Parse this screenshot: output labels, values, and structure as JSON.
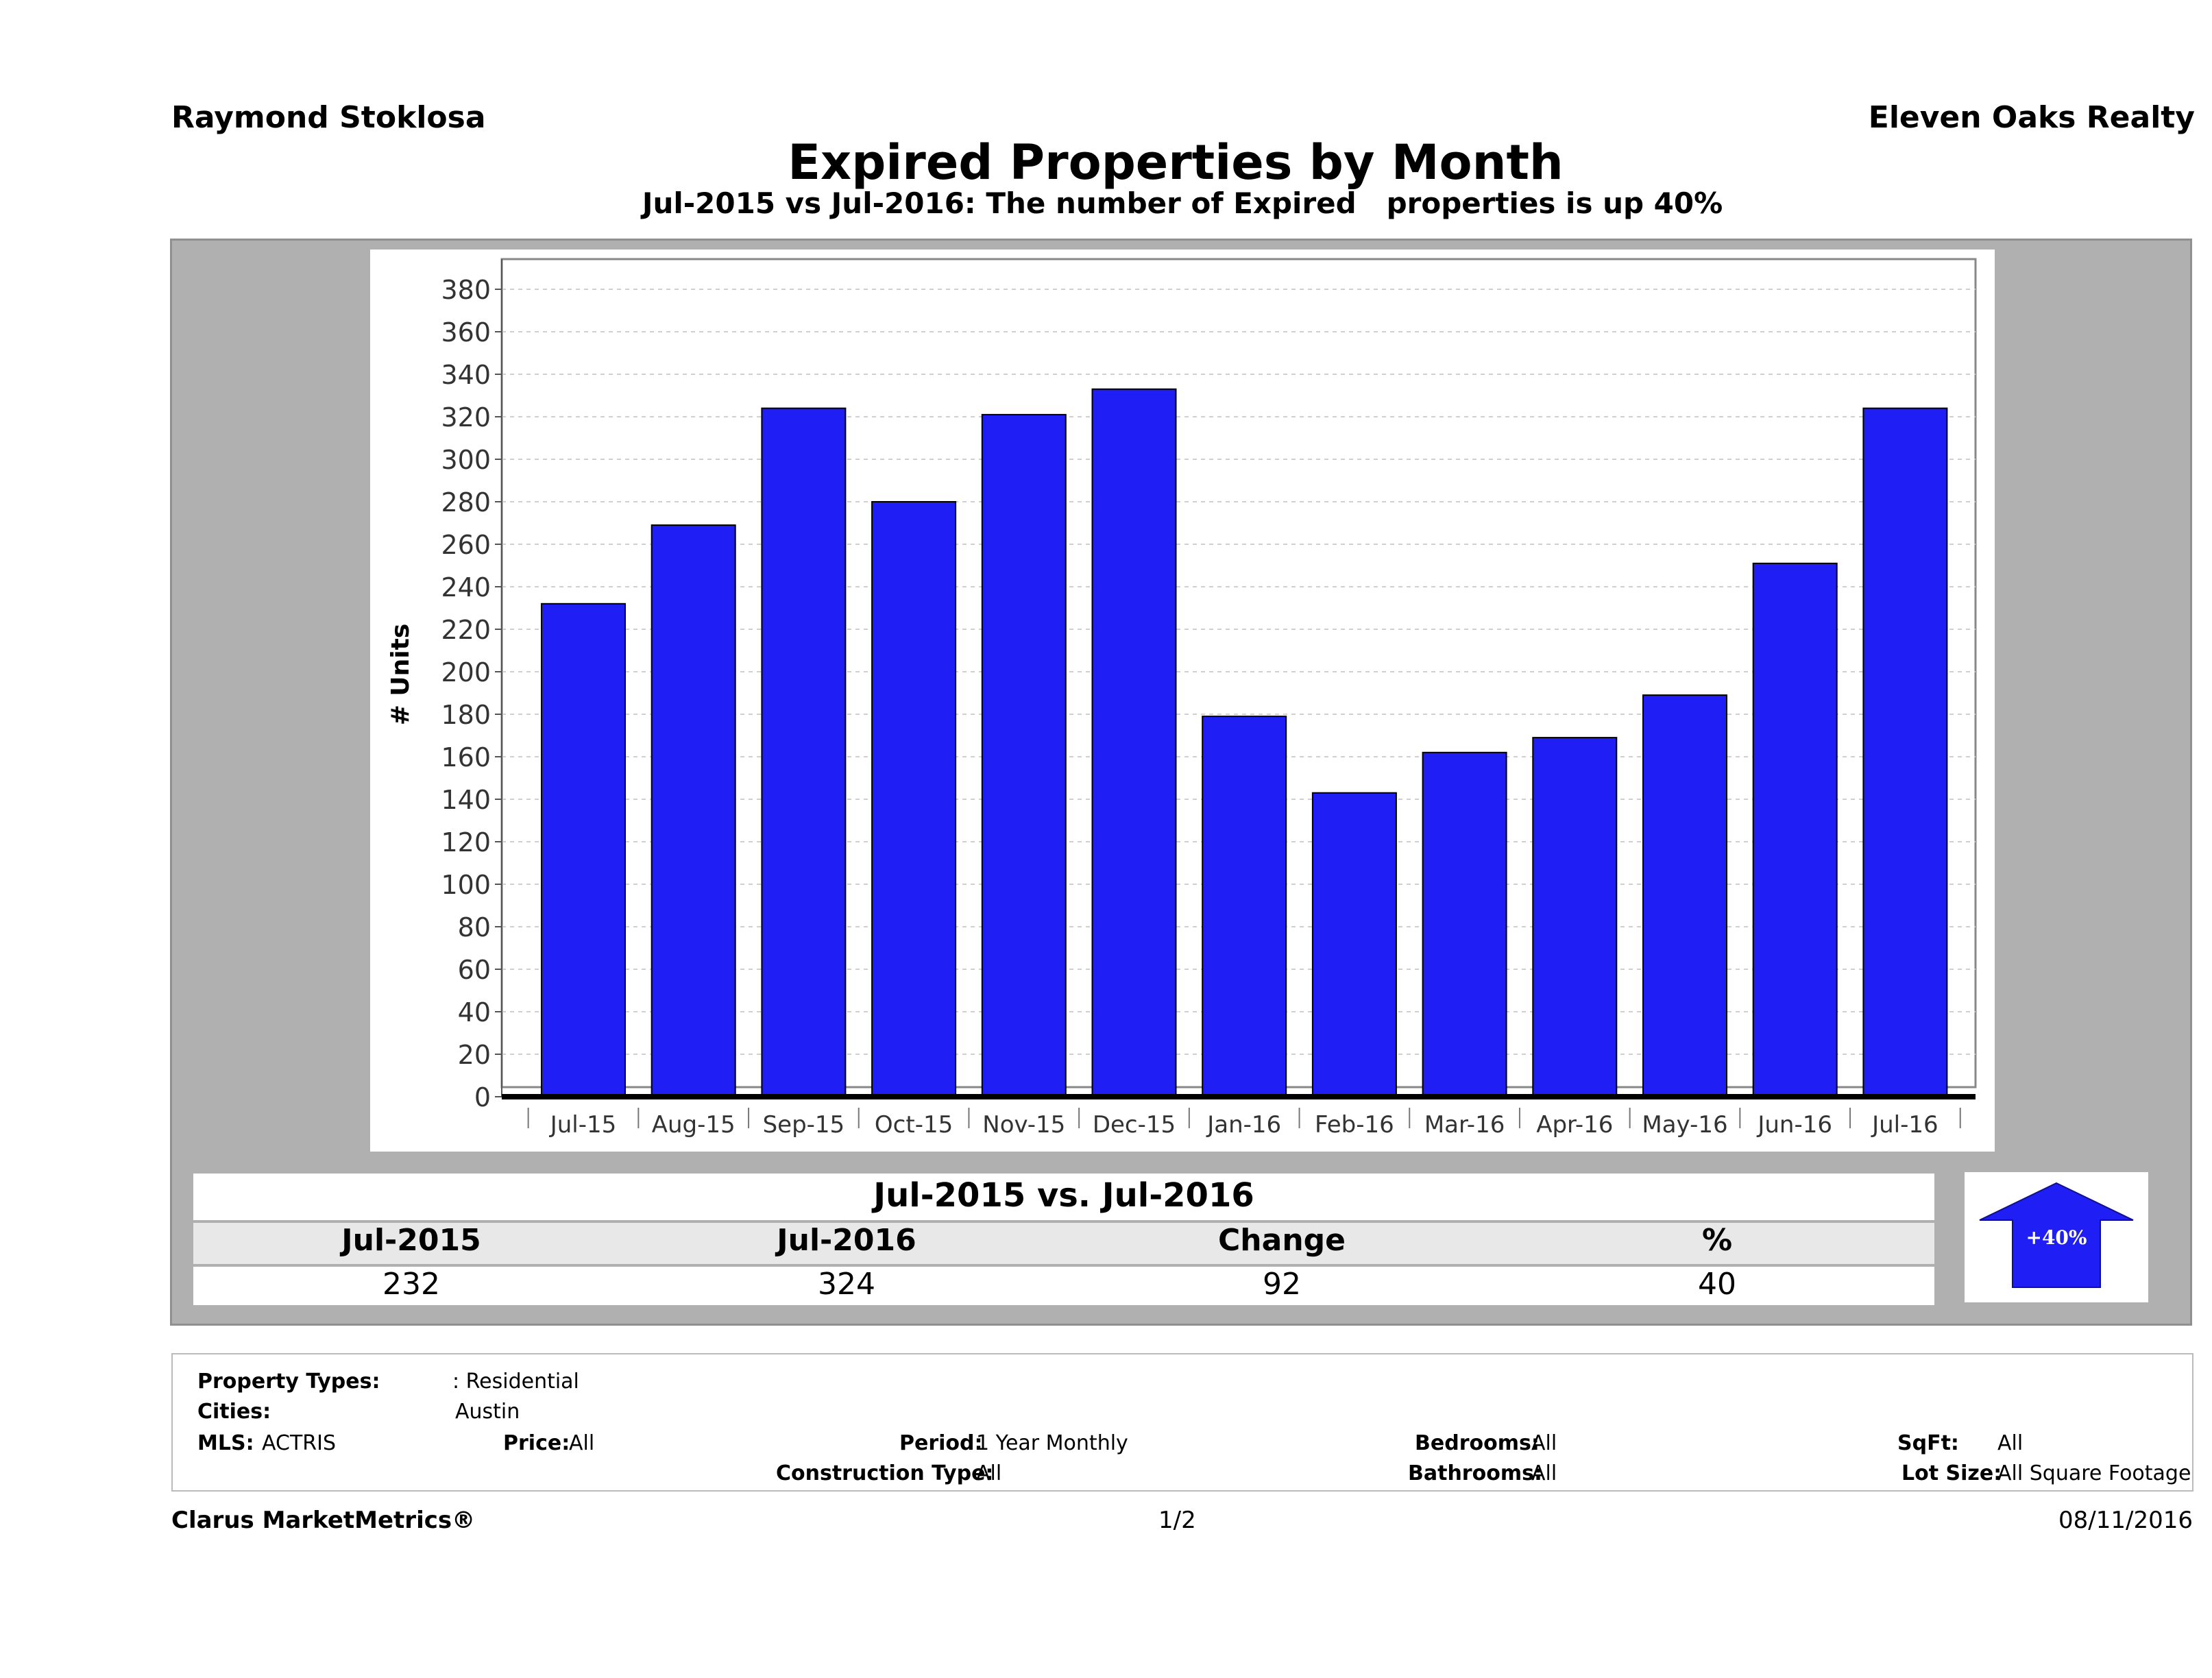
{
  "header": {
    "agent": "Raymond Stoklosa",
    "company": "Eleven Oaks Realty",
    "title": "Expired Properties by Month",
    "subtitle": "Jul-2015 vs Jul-2016: The number of Expired   properties is up 40%"
  },
  "chart_data": {
    "type": "bar",
    "categories": [
      "Jul-15",
      "Aug-15",
      "Sep-15",
      "Oct-15",
      "Nov-15",
      "Dec-15",
      "Jan-16",
      "Feb-16",
      "Mar-16",
      "Apr-16",
      "May-16",
      "Jun-16",
      "Jul-16"
    ],
    "values": [
      232,
      269,
      324,
      280,
      321,
      333,
      179,
      143,
      162,
      169,
      189,
      251,
      324
    ],
    "ylabel": "# Units",
    "xlabel": "",
    "ylim": [
      0,
      380
    ],
    "yticks": [
      0,
      20,
      40,
      60,
      80,
      100,
      120,
      140,
      160,
      180,
      200,
      220,
      240,
      260,
      280,
      300,
      320,
      340,
      360,
      380
    ],
    "grid": true,
    "bar_color": "#1f1ff5"
  },
  "summary": {
    "title": "Jul-2015 vs. Jul-2016",
    "headers": [
      "Jul-2015",
      "Jul-2016",
      "Change",
      "%"
    ],
    "values": [
      "232",
      "324",
      "92",
      "40"
    ],
    "arrow_label": "+40%",
    "arrow_direction": "up",
    "arrow_color": "#1f1ff5"
  },
  "filters": {
    "property_types_label": "Property Types:",
    "property_types_value": ": Residential",
    "cities_label": "Cities:",
    "cities_value": "Austin",
    "mls_label": "MLS:",
    "mls_value": "ACTRIS",
    "price_label": "Price:",
    "price_value": "All",
    "period_label": "Period:",
    "period_value": "1 Year Monthly",
    "construction_label": "Construction Type:",
    "construction_value": "All",
    "bedrooms_label": "Bedrooms:",
    "bedrooms_value": "All",
    "bathrooms_label": "Bathrooms:",
    "bathrooms_value": "All",
    "sqft_label": "SqFt:",
    "sqft_value": "All",
    "lotsize_label": "Lot Size:",
    "lotsize_value": "All Square Footage"
  },
  "footer": {
    "brand": "Clarus MarketMetrics®",
    "page": "1/2",
    "date": "08/11/2016"
  }
}
